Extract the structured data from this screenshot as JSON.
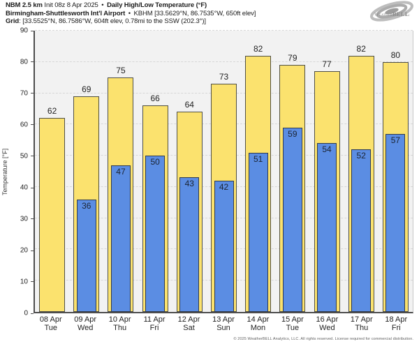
{
  "header": {
    "model": "NBM 2.5 km",
    "init": "Init 08z 8 Apr 2025",
    "sep": "•",
    "product": "Daily High/Low Temperature (°F)",
    "station_name": "Birmingham-Shuttlesworth Int'l Airport",
    "station_info": "KBHM [33.5629°N, 86.7535°W, 650ft elev]",
    "grid_label": "Grid",
    "grid_info": ": [33.5525°N, 86.7586°W, 604ft elev, 0.78mi to the SSW (202.3°)]"
  },
  "logo": {
    "brand_first": "Weather",
    "brand_second": "BELL",
    "subtext": "Analytics LLC"
  },
  "chart_data": {
    "type": "bar",
    "title": "Daily High/Low Temperature (°F)",
    "ylabel": "Temperature [°F]",
    "ylim": [
      0,
      90
    ],
    "ytick_step": 10,
    "grid": "horizontal-dashed",
    "legend_position": "none",
    "categories": [
      "08 Apr",
      "09 Apr",
      "10 Apr",
      "11 Apr",
      "12 Apr",
      "13 Apr",
      "14 Apr",
      "15 Apr",
      "16 Apr",
      "17 Apr",
      "18 Apr"
    ],
    "weekdays": [
      "Tue",
      "Wed",
      "Thu",
      "Fri",
      "Sat",
      "Sun",
      "Mon",
      "Tue",
      "Wed",
      "Thu",
      "Fri"
    ],
    "series": [
      {
        "name": "High",
        "color": "#fbe26e",
        "border": "#4f4f45",
        "values": [
          62,
          69,
          75,
          66,
          64,
          73,
          82,
          79,
          77,
          82,
          80
        ]
      },
      {
        "name": "Low",
        "color": "#5b8de3",
        "border": "#2f3a4d",
        "values": [
          null,
          36,
          47,
          50,
          43,
          42,
          51,
          59,
          54,
          52,
          57
        ]
      }
    ]
  },
  "footer": "© 2025 WeatherBELL Analytics, LLC. All rights reserved. License required for commercial distribution."
}
